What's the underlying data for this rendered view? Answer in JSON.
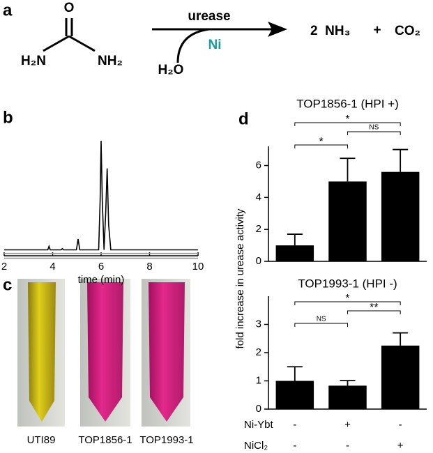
{
  "panel_labels": [
    "a",
    "b",
    "c",
    "d"
  ],
  "reaction": {
    "oxygen": "O",
    "left_amine": "H₂N",
    "right_amine": "NH₂",
    "enzyme": "urease",
    "cofactor": "Ni",
    "co_reactant": "H₂O",
    "product_1": "2  NH₃",
    "plus": "+",
    "product_2": "CO₂"
  },
  "photos": {
    "captions": [
      "UTI89",
      "TOP1856-1",
      "TOP1993-1"
    ]
  },
  "y_axis_label": "fold increase in urease activity",
  "treatments": [
    {
      "name": "Ni-Ybt",
      "marks": [
        "-",
        "+",
        "-"
      ]
    },
    {
      "name": "NiCl₂",
      "marks": [
        "-",
        "-",
        "+"
      ]
    }
  ],
  "chart_data": [
    {
      "type": "line",
      "xlabel": "time (min)",
      "xlim": [
        2,
        10
      ],
      "xticks": [
        2,
        4,
        6,
        8,
        10
      ],
      "series": [
        {
          "color": "#000000",
          "x": [
            2,
            3.8,
            3.85,
            3.9,
            4.35,
            4.4,
            4.45,
            4.98,
            5.05,
            5.12,
            5.9,
            5.96,
            6.0,
            6.05,
            6.12,
            6.19,
            6.25,
            6.31,
            6.4,
            10
          ],
          "values": [
            0.09,
            0.09,
            0.12,
            0.09,
            0.09,
            0.1,
            0.09,
            0.09,
            0.18,
            0.09,
            0.09,
            0.5,
            1.0,
            0.5,
            0.09,
            0.4,
            0.77,
            0.3,
            0.09,
            0.09
          ]
        },
        {
          "color": "#999999",
          "x": [
            2,
            10
          ],
          "values": [
            0.06,
            0.06
          ]
        },
        {
          "color": "#999999",
          "x": [
            2,
            10
          ],
          "values": [
            0.02,
            0.02
          ]
        }
      ]
    },
    {
      "type": "bar",
      "title": "TOP1856-1 (HPI +)",
      "values": [
        1.0,
        5.0,
        5.6
      ],
      "errors": [
        0.7,
        1.45,
        1.4
      ],
      "color": "#000000",
      "ylim": [
        0,
        7.2
      ],
      "yticks": [
        0,
        2,
        4,
        6
      ],
      "significance": [
        "*",
        "NS",
        "*"
      ]
    },
    {
      "type": "bar",
      "title": "TOP1993-1 (HPI -)",
      "values": [
        1.0,
        0.83,
        2.25
      ],
      "errors": [
        0.5,
        0.18,
        0.45
      ],
      "color": "#000000",
      "ylim": [
        0,
        4
      ],
      "yticks": [
        0,
        1,
        2,
        3
      ],
      "significance": [
        "*",
        "**",
        "NS"
      ]
    }
  ]
}
